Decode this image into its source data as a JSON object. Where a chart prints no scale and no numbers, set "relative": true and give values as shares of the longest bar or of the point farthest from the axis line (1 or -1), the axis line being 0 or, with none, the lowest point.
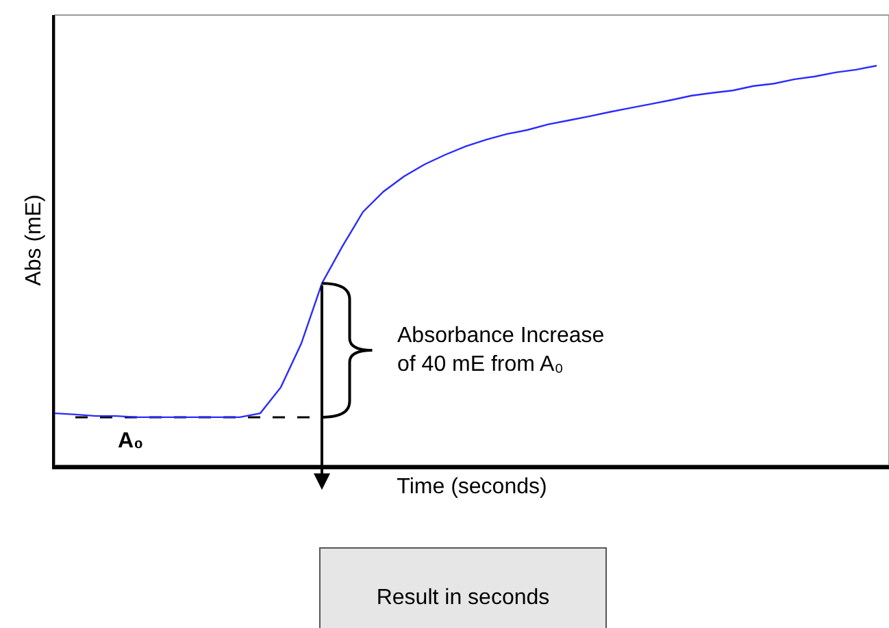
{
  "chart_data": {
    "type": "line",
    "relative": true,
    "xlabel": "Time (seconds)",
    "ylabel": "Abs (mE)",
    "tick_labels": false,
    "grid": false,
    "categories": [
      null,
      null,
      null,
      null,
      null,
      null,
      null,
      null,
      null,
      null,
      null,
      null,
      null,
      null,
      null,
      null,
      null,
      null,
      null,
      null,
      null,
      null,
      null,
      null,
      null,
      null,
      null,
      null,
      null,
      null,
      null,
      null,
      null,
      null,
      null,
      null,
      null,
      null,
      null,
      null,
      null
    ],
    "series": [
      {
        "color": "#2a2aff",
        "values": [
          0.13,
          0.127,
          0.123,
          0.123,
          0.12,
          0.12,
          0.12,
          0.12,
          0.12,
          0.12,
          0.13,
          0.195,
          0.305,
          0.455,
          0.548,
          0.634,
          0.685,
          0.723,
          0.753,
          0.777,
          0.798,
          0.815,
          0.829,
          0.839,
          0.853,
          0.863,
          0.873,
          0.884,
          0.894,
          0.904,
          0.914,
          0.925,
          0.932,
          0.938,
          0.949,
          0.955,
          0.966,
          0.973,
          0.983,
          0.99,
          1
        ]
      },
      {
        "color": "#000000",
        "line_style": "dashed",
        "values": [
          null,
          0.12,
          0.12,
          0.12,
          0.12,
          0.12,
          0.12,
          0.12,
          0.12,
          0.12,
          0.12,
          0.12,
          0.12,
          0.12,
          null,
          null,
          null,
          null,
          null,
          null,
          null,
          null,
          null,
          null,
          null,
          null,
          null,
          null,
          null,
          null,
          null,
          null,
          null,
          null,
          null,
          null,
          null,
          null,
          null,
          null,
          null
        ]
      }
    ],
    "annotations": [
      "Absorbance Increase\nof 40 mE from A₀",
      "A₀",
      "Result in seconds"
    ]
  }
}
